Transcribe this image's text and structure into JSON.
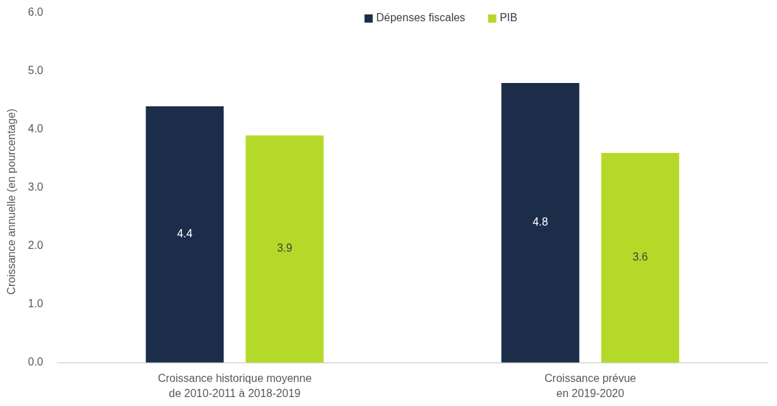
{
  "chart_data": {
    "type": "bar",
    "ylabel": "Croissance annuelle (en pourcentage)",
    "categories": [
      "Croissance historique moyenne\nde 2010-2011 à 2018-2019",
      "Croissance prévue\nen 2019-2020"
    ],
    "series": [
      {
        "name": "Dépenses fiscales",
        "color": "#1c2d4a",
        "values": [
          4.4,
          4.8
        ]
      },
      {
        "name": "PIB",
        "color": "#b5d929",
        "values": [
          3.9,
          3.6
        ]
      }
    ],
    "ylim": [
      0,
      6
    ],
    "yticks": [
      {
        "value": 0,
        "label": "0.0"
      },
      {
        "value": 1,
        "label": "1.0"
      },
      {
        "value": 2,
        "label": "2.0"
      },
      {
        "value": 3,
        "label": "3.0"
      },
      {
        "value": 4,
        "label": "4.0"
      },
      {
        "value": 5,
        "label": "5.0"
      },
      {
        "value": 6,
        "label": "6.0"
      }
    ],
    "grid": false,
    "legend": "top",
    "data_labels": true
  }
}
